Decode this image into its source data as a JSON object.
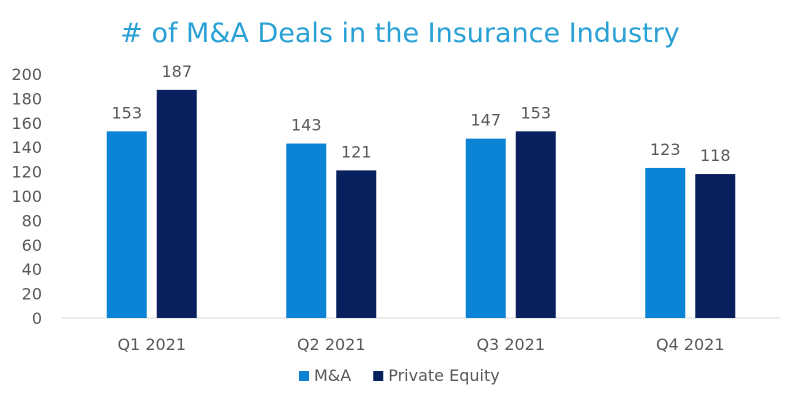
{
  "chart_data": {
    "type": "bar",
    "title": "# of M&A Deals in the Insurance Industry",
    "categories": [
      "Q1 2021",
      "Q2 2021",
      "Q3 2021",
      "Q4 2021"
    ],
    "series": [
      {
        "name": "M&A",
        "values": [
          153,
          143,
          147,
          123
        ],
        "color": "#0b84d6"
      },
      {
        "name": "Private Equity",
        "values": [
          187,
          121,
          153,
          118
        ],
        "color": "#08215e"
      }
    ],
    "ylim": [
      0,
      200
    ],
    "yticks": [
      0,
      20,
      40,
      60,
      80,
      100,
      120,
      140,
      160,
      180,
      200
    ],
    "grid": false,
    "legend_position": "bottom",
    "data_labels": true,
    "xlabel": "",
    "ylabel": ""
  }
}
